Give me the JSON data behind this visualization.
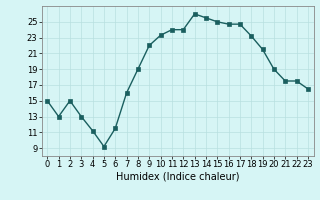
{
  "x": [
    0,
    1,
    2,
    3,
    4,
    5,
    6,
    7,
    8,
    9,
    10,
    11,
    12,
    13,
    14,
    15,
    16,
    17,
    18,
    19,
    20,
    21,
    22,
    23
  ],
  "y": [
    15,
    13,
    15,
    13,
    11.2,
    9.2,
    11.5,
    16,
    19,
    22,
    23.3,
    24,
    24,
    26,
    25.5,
    25,
    24.7,
    24.7,
    23.2,
    21.5,
    19,
    17.5,
    17.5,
    16.5
  ],
  "line_color": "#1a5f5f",
  "marker_color": "#1a5f5f",
  "bg_color": "#d6f5f5",
  "grid_color": "#b8e0e0",
  "xlabel": "Humidex (Indice chaleur)",
  "xlim": [
    -0.5,
    23.5
  ],
  "ylim": [
    8,
    27
  ],
  "yticks": [
    9,
    11,
    13,
    15,
    17,
    19,
    21,
    23,
    25
  ],
  "xticks": [
    0,
    1,
    2,
    3,
    4,
    5,
    6,
    7,
    8,
    9,
    10,
    11,
    12,
    13,
    14,
    15,
    16,
    17,
    18,
    19,
    20,
    21,
    22,
    23
  ],
  "tick_fontsize": 6,
  "xlabel_fontsize": 7,
  "marker_size": 2.5,
  "line_width": 1.0
}
